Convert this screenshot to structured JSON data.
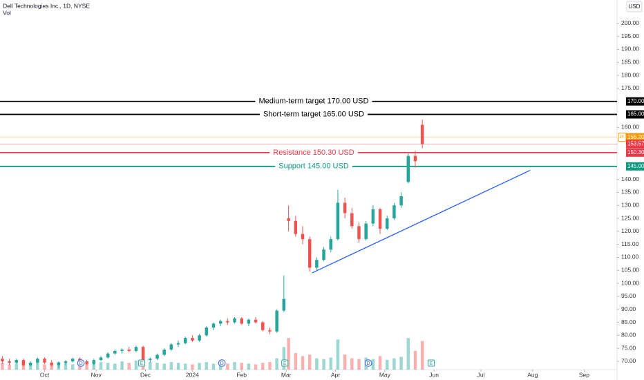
{
  "chart_data": {
    "type": "candlestick",
    "title": "Dell Technologies Inc., 1D, NYSE",
    "subtitle": "Vol",
    "currency": "USD",
    "xlim": [
      -1,
      262
    ],
    "ylim": [
      66.8,
      209
    ],
    "volume_ylim": [
      0,
      110
    ],
    "grid": false,
    "xticks": [
      {
        "value": 18,
        "label": "Oct"
      },
      {
        "value": 40,
        "label": "Nov"
      },
      {
        "value": 61,
        "label": "Dec"
      },
      {
        "value": 81,
        "label": "2024"
      },
      {
        "value": 102,
        "label": "Feb"
      },
      {
        "value": 121,
        "label": "Mar"
      },
      {
        "value": 142,
        "label": "Apr"
      },
      {
        "value": 163,
        "label": "May"
      },
      {
        "value": 184,
        "label": "Jun"
      },
      {
        "value": 204,
        "label": "Jul"
      },
      {
        "value": 226,
        "label": "Aug"
      },
      {
        "value": 248,
        "label": "Sep"
      }
    ],
    "yticks": [
      {
        "value": 200,
        "label": "200.00"
      },
      {
        "value": 195,
        "label": "195.00"
      },
      {
        "value": 190,
        "label": "190.00"
      },
      {
        "value": 185,
        "label": "185.00"
      },
      {
        "value": 180,
        "label": "180.00"
      },
      {
        "value": 175,
        "label": "175.00"
      },
      {
        "value": 160,
        "label": "160.00"
      },
      {
        "value": 140,
        "label": "140.00"
      },
      {
        "value": 135,
        "label": "135.00"
      },
      {
        "value": 130,
        "label": "130.00"
      },
      {
        "value": 125,
        "label": "125.00"
      },
      {
        "value": 120,
        "label": "120.00"
      },
      {
        "value": 115,
        "label": "115.00"
      },
      {
        "value": 110,
        "label": "110.00"
      },
      {
        "value": 105,
        "label": "105.00"
      },
      {
        "value": 100,
        "label": "100.00"
      },
      {
        "value": 95,
        "label": "95.00"
      },
      {
        "value": 90,
        "label": "90.00"
      },
      {
        "value": 85,
        "label": "85.00"
      },
      {
        "value": 80,
        "label": "80.00"
      },
      {
        "value": 75,
        "label": "75.00"
      },
      {
        "value": 70,
        "label": "70.00"
      }
    ],
    "up_color": "#26a69a",
    "down_color": "#ef5350",
    "candles": {
      "x": [
        0,
        3,
        6,
        9,
        12,
        15,
        18,
        21,
        24,
        27,
        30,
        33,
        36,
        39,
        42,
        45,
        48,
        51,
        54,
        57,
        60,
        63,
        66,
        69,
        72,
        75,
        78,
        81,
        84,
        87,
        90,
        93,
        96,
        99,
        102,
        105,
        108,
        111,
        114,
        117,
        120,
        122,
        125,
        128,
        131,
        134,
        137,
        140,
        143,
        146,
        149,
        152,
        155,
        158,
        161,
        164,
        167,
        170,
        173,
        176,
        179
      ],
      "open": [
        71,
        70,
        69.5,
        70.5,
        68.5,
        69.5,
        71,
        69.5,
        68.5,
        69.5,
        70,
        71,
        70,
        69,
        70.5,
        71.5,
        73,
        74,
        74.5,
        74,
        75.5,
        70.5,
        71,
        72.5,
        74.5,
        76.5,
        77,
        79,
        78,
        80,
        83,
        84.5,
        85.5,
        85,
        86.5,
        84.5,
        86,
        85,
        82,
        81.5,
        89.5,
        125,
        124,
        119,
        117,
        106,
        109,
        113,
        117,
        131,
        127,
        122,
        117,
        123,
        128.5,
        121,
        125,
        130,
        139,
        149,
        161
      ],
      "high": [
        72,
        71,
        71,
        71,
        70,
        71.5,
        71.5,
        70.5,
        70,
        70.5,
        71.5,
        71.5,
        70.5,
        71,
        72,
        73.5,
        74.5,
        75,
        75.5,
        76,
        76,
        71.5,
        73,
        75,
        77,
        78,
        79.5,
        80,
        80.5,
        83.5,
        85,
        86,
        86.5,
        87,
        87,
        86.5,
        87,
        85.5,
        83,
        90,
        103,
        130,
        126,
        122,
        118,
        110,
        114,
        118,
        136,
        133,
        129,
        123.5,
        124,
        130,
        129,
        126,
        131,
        135,
        150,
        151,
        163
      ],
      "low": [
        69,
        68.5,
        69,
        68,
        68,
        69,
        69,
        68,
        67.5,
        68.5,
        69.5,
        69.5,
        68.5,
        68.5,
        70,
        71,
        72.5,
        73,
        73.5,
        73.5,
        69.5,
        69.5,
        70.5,
        72,
        74,
        75.5,
        76.5,
        77.5,
        77.5,
        79.5,
        82,
        83.5,
        84,
        84.5,
        84,
        83.5,
        84.5,
        81.5,
        80.5,
        81,
        89,
        120,
        118,
        115,
        104.5,
        105,
        108.5,
        112,
        116.5,
        125,
        121,
        115.5,
        116.5,
        122,
        119,
        120.5,
        124.5,
        129,
        138.5,
        144.5,
        152
      ],
      "close": [
        70,
        69.5,
        70.5,
        68.5,
        69.5,
        71,
        69.5,
        68.5,
        69.5,
        70,
        71,
        70,
        69,
        70.5,
        71.5,
        73,
        74,
        74.5,
        74,
        75.5,
        70.5,
        71,
        72.5,
        74.5,
        76.5,
        77,
        79,
        78,
        80,
        83,
        84.5,
        85.5,
        85,
        86.5,
        84.5,
        86,
        85,
        82,
        81.5,
        89.5,
        94,
        124,
        119,
        117,
        106,
        109,
        113,
        117,
        131,
        127,
        122,
        117,
        123,
        128.5,
        121,
        125,
        130,
        133.5,
        149,
        147,
        153.57
      ],
      "volume": [
        9,
        7,
        8,
        10,
        8,
        9,
        7,
        8,
        10,
        9,
        7,
        8,
        9,
        8,
        10,
        9,
        8,
        11,
        9,
        12,
        14,
        10,
        9,
        8,
        10,
        9,
        8,
        7,
        9,
        10,
        8,
        9,
        8,
        10,
        9,
        8,
        7,
        9,
        10,
        15,
        30,
        42,
        22,
        18,
        20,
        15,
        14,
        16,
        40,
        20,
        15,
        14,
        16,
        14,
        18,
        13,
        15,
        17,
        42,
        25,
        38
      ]
    },
    "levels": [
      {
        "value": 170,
        "label": "Medium-term target 170.00 USD",
        "badge": "170.00",
        "color": "#000000"
      },
      {
        "value": 165,
        "label": "Short-term target 165.00 USD",
        "badge": "165.00",
        "color": "#000000"
      },
      {
        "value": 150.3,
        "label": "Resistance 150.30 USD",
        "badge": "150.30",
        "color": "#f23645"
      },
      {
        "value": 145,
        "label": "Support 145.00 USD",
        "badge": "145.00",
        "color": "#089981"
      }
    ],
    "price_marks": [
      {
        "value": 156.2,
        "label": "156.20",
        "tag": "Pr",
        "color": "#ff9800"
      },
      {
        "value": 153.57,
        "label": "153.57",
        "color": "#f23645"
      }
    ],
    "trendline": {
      "x": [
        132,
        225
      ],
      "y": [
        104,
        143.5
      ],
      "color": "#2962ff"
    },
    "events": [
      {
        "x": 33.5,
        "label": "D"
      },
      {
        "x": 59.4,
        "label": "E"
      },
      {
        "x": 93.6,
        "label": "D"
      },
      {
        "x": 120.4,
        "label": "E"
      },
      {
        "x": 156,
        "label": "D"
      },
      {
        "x": 182.8,
        "label": "E"
      }
    ]
  }
}
